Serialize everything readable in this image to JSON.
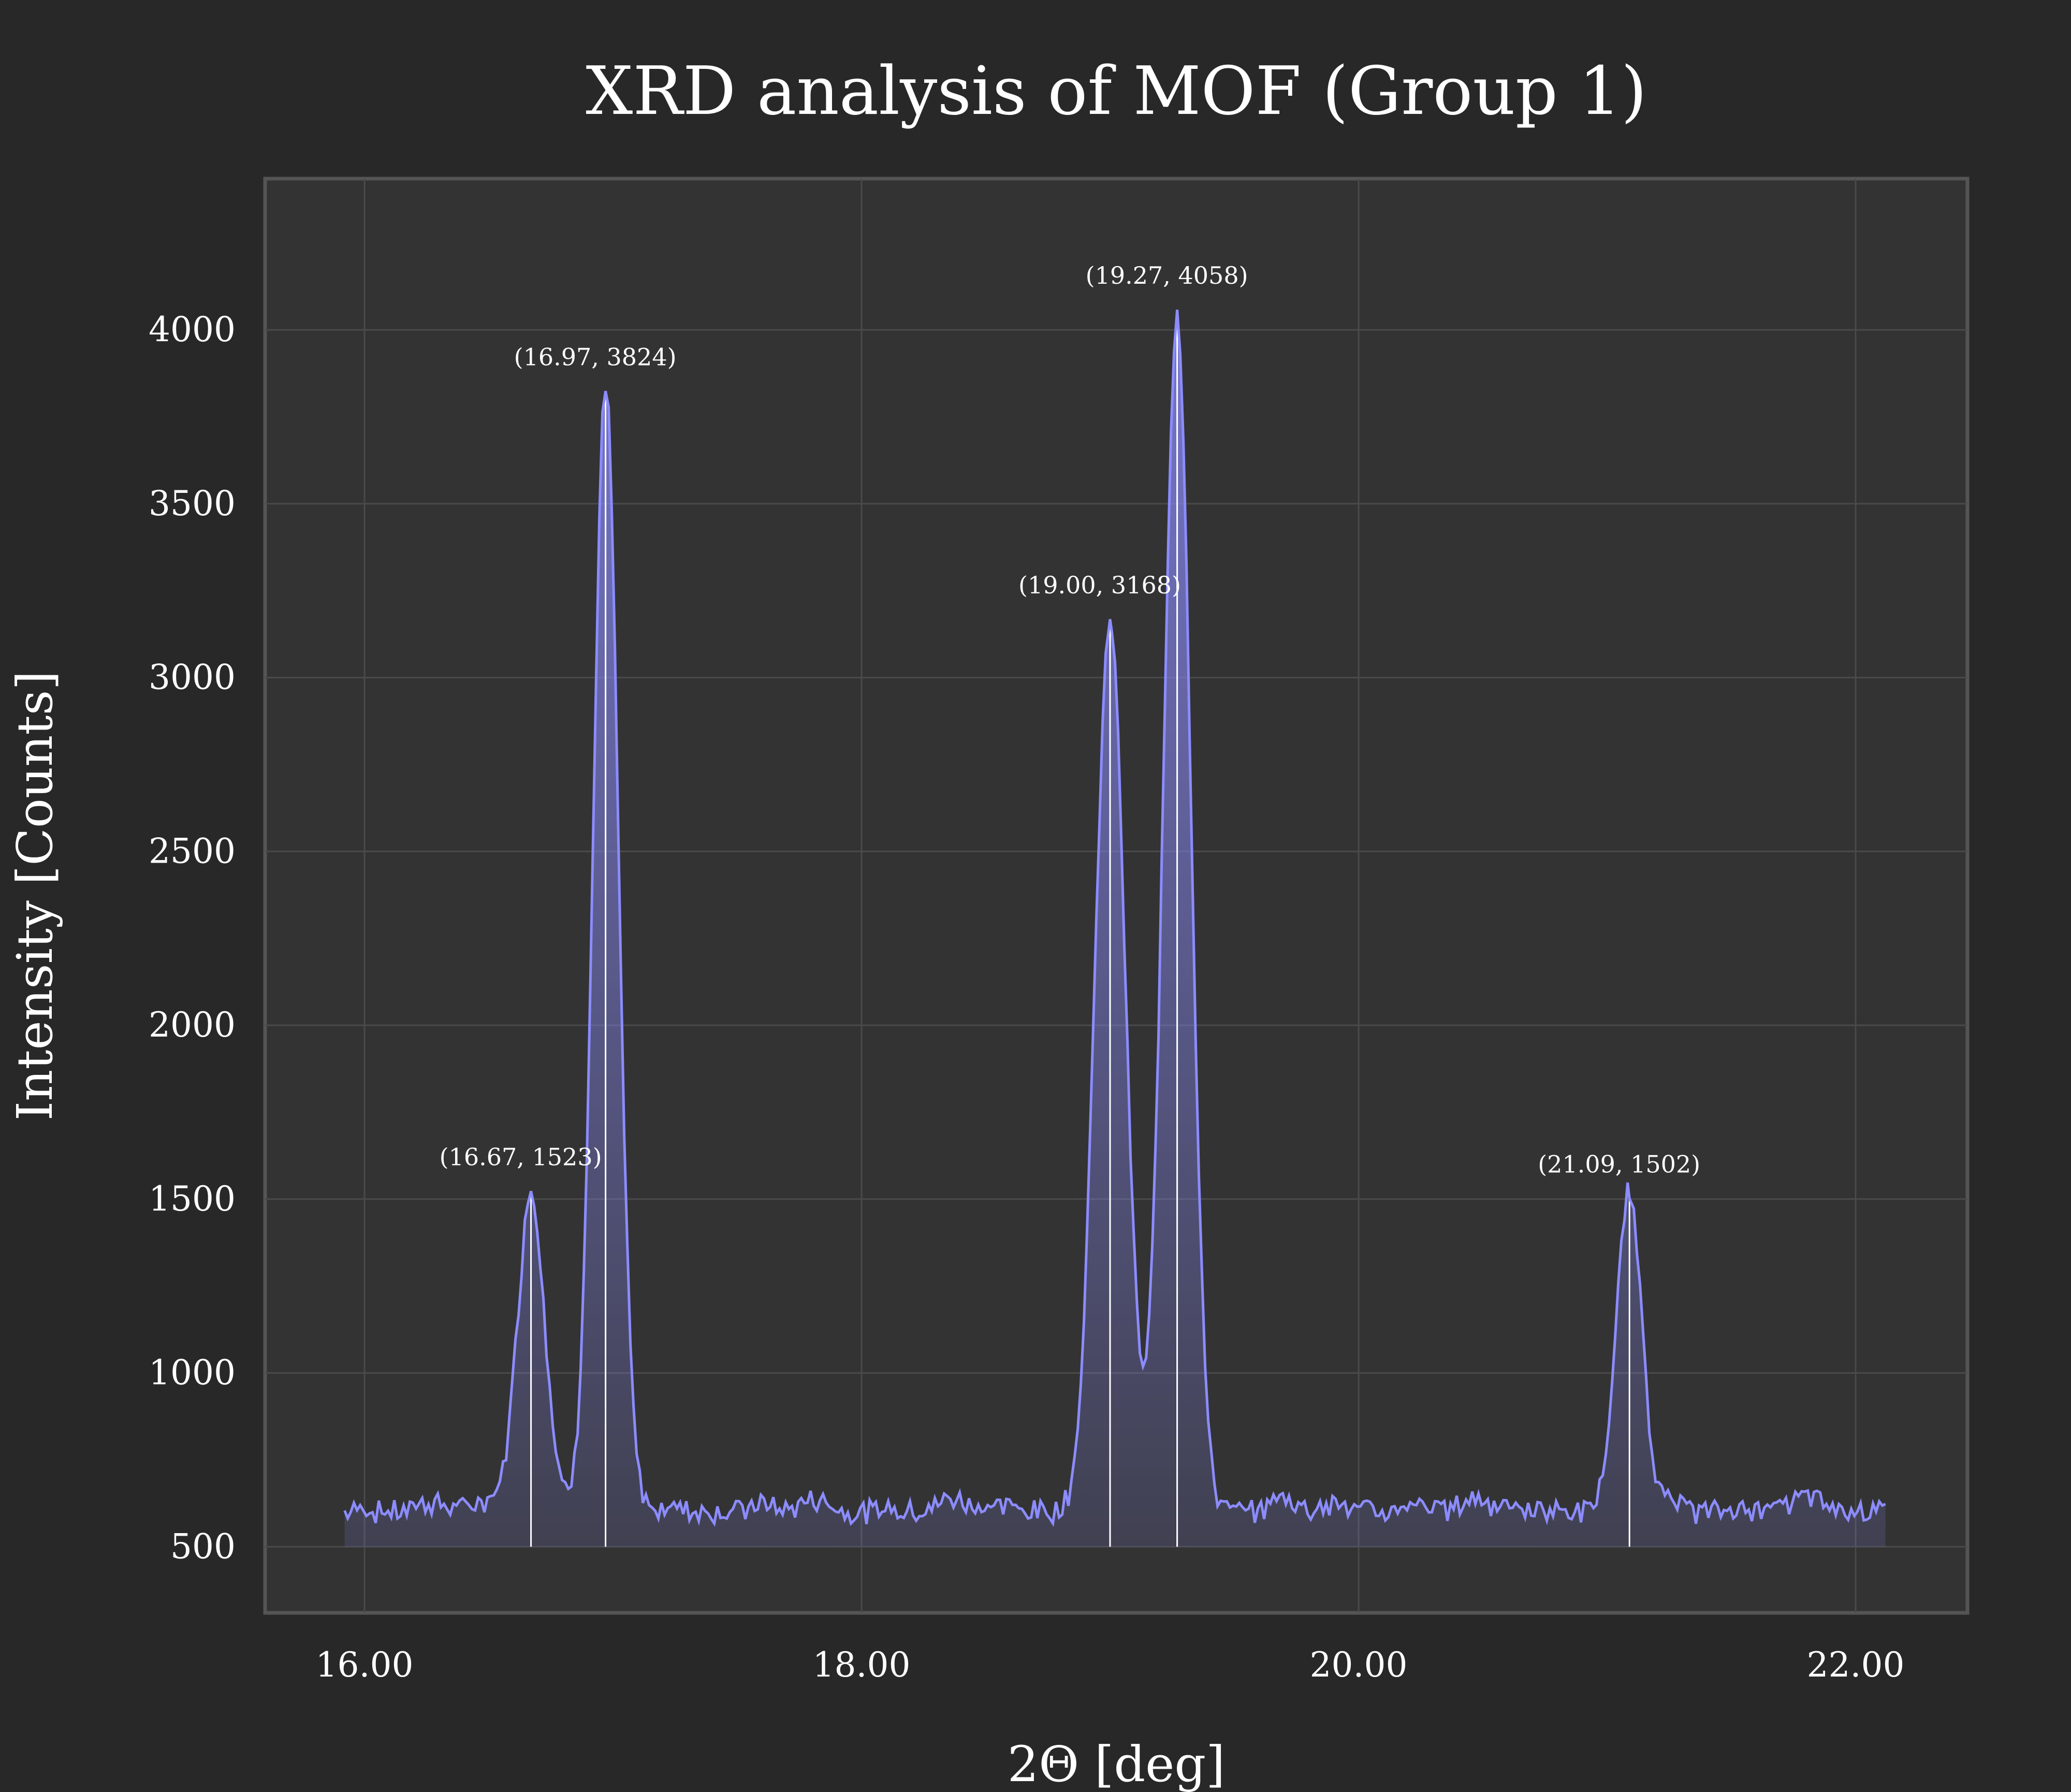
{
  "chart_data": {
    "type": "line",
    "title": "XRD analysis of MOF (Group 1)",
    "xlabel": "2Θ [deg]",
    "ylabel": "Intensity [Counts]",
    "xlim": [
      15.6,
      22.45
    ],
    "ylim": [
      310,
      4435
    ],
    "xticks": [
      16.0,
      18.0,
      20.0,
      22.0
    ],
    "xtick_labels": [
      "16.00",
      "18.00",
      "20.00",
      "22.00"
    ],
    "yticks": [
      500,
      1000,
      1500,
      2000,
      2500,
      3000,
      3500,
      4000
    ],
    "ytick_labels": [
      "500",
      "1000",
      "1500",
      "2000",
      "2500",
      "3000",
      "3500",
      "4000"
    ],
    "grid": true,
    "line_color": "#8c8cff",
    "fill_color": "#8c8cff",
    "baseline": 500,
    "x_range": [
      15.92,
      22.12
    ],
    "background_level": 600,
    "peaks": [
      {
        "x": 16.67,
        "y": 1523,
        "label": "(16.67, 1523)"
      },
      {
        "x": 16.97,
        "y": 3824,
        "label": "(16.97, 3824)"
      },
      {
        "x": 19.0,
        "y": 3168,
        "label": "(19.00, 3168)"
      },
      {
        "x": 19.27,
        "y": 4058,
        "label": "(19.27, 4058)"
      },
      {
        "x": 21.09,
        "y": 1502,
        "label": "(21.09, 1502)"
      }
    ],
    "peak_widths": [
      0.055,
      0.05,
      0.06,
      0.055,
      0.05
    ]
  }
}
